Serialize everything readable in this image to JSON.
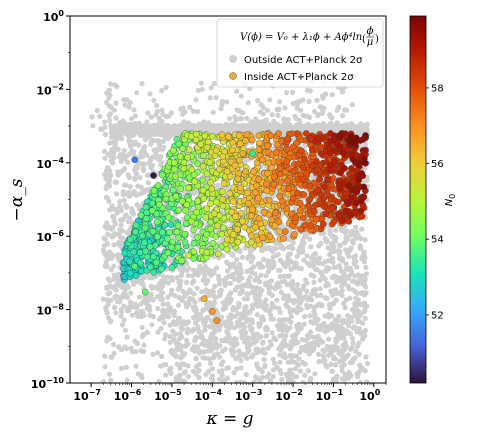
{
  "chart_data": {
    "type": "scatter",
    "xlabel": "κ = g",
    "ylabel": "−α_s",
    "xscale": "log",
    "yscale": "log",
    "xlim": [
      3e-08,
      2
    ],
    "ylim": [
      1e-10,
      1
    ],
    "x_ticks": [
      {
        "base": "10",
        "exp": "−7"
      },
      {
        "base": "10",
        "exp": "−6"
      },
      {
        "base": "10",
        "exp": "−5"
      },
      {
        "base": "10",
        "exp": "−4"
      },
      {
        "base": "10",
        "exp": "−3"
      },
      {
        "base": "10",
        "exp": "−2"
      },
      {
        "base": "10",
        "exp": "−1"
      },
      {
        "base": "10",
        "exp": "0"
      }
    ],
    "y_ticks": [
      {
        "base": "10",
        "exp": "−10"
      },
      {
        "base": "10",
        "exp": "−8"
      },
      {
        "base": "10",
        "exp": "−6"
      },
      {
        "base": "10",
        "exp": "−4"
      },
      {
        "base": "10",
        "exp": "−2"
      },
      {
        "base": "10",
        "exp": "0"
      }
    ],
    "legend": {
      "placement": "top-right",
      "formula_main": "V(ϕ) = V₀ + λ₁ϕ + Aϕ⁴ln",
      "formula_num": "ϕ",
      "formula_den": "μ",
      "entries": [
        {
          "label": "Outside ACT+Planck 2σ",
          "color": "#cfcfcf"
        },
        {
          "label": "Inside ACT+Planck 2σ",
          "color": "#f5a830"
        }
      ]
    },
    "colorbar": {
      "label_base": "N",
      "label_sub": "0",
      "range": [
        50.2,
        59.9
      ],
      "ticks": [
        "52",
        "54",
        "56",
        "58"
      ],
      "colormap": "turbo"
    },
    "series": [
      {
        "name": "Outside ACT+Planck 2σ",
        "color": "#cfcfcf",
        "clouds": [
          {
            "kind": "band",
            "xrange": [
              3e-07,
              0.7
            ],
            "ylog_center": -3.1,
            "ylog_spread": 0.07,
            "n": 1600
          },
          {
            "kind": "fill",
            "xrange": [
              2e-07,
              0.7
            ],
            "ylog_range": [
              -10,
              -3.1
            ],
            "n": 3200
          },
          {
            "kind": "upper",
            "xrange": [
              1e-07,
              0.3
            ],
            "ylog_range": [
              -3.1,
              -1.8
            ],
            "n": 240
          }
        ]
      },
      {
        "name": "Inside ACT+Planck 2σ",
        "cloud": {
          "n": 1500,
          "xlog_range": [
            -6.2,
            -0.2
          ],
          "ylog_top": -3.2,
          "ylog_bottom_at_left": -7.2,
          "ylog_bottom_at_right": -5.5,
          "N0_low": 52.8,
          "N0_high": 59.6
        },
        "points": [
          {
            "x": 1.2e-06,
            "y": 0.00012,
            "N0": 51.5
          },
          {
            "x": 3.5e-06,
            "y": 4.5e-05,
            "N0": 50.3
          },
          {
            "x": 8e-06,
            "y": 3.5e-07,
            "N0": 54.2
          },
          {
            "x": 6.3e-05,
            "y": 2e-08,
            "N0": 56.5
          },
          {
            "x": 0.0001,
            "y": 9e-09,
            "N0": 56.9
          },
          {
            "x": 0.00013,
            "y": 5e-09,
            "N0": 57.0
          },
          {
            "x": 2.6e-05,
            "y": 3e-07,
            "N0": 55.2
          },
          {
            "x": 1.2e-06,
            "y": 1.5e-07,
            "N0": 53.8
          },
          {
            "x": 2.2e-06,
            "y": 3e-08,
            "N0": 53.9
          },
          {
            "x": 0.001,
            "y": 0.00018,
            "N0": 53.4
          }
        ]
      }
    ]
  }
}
